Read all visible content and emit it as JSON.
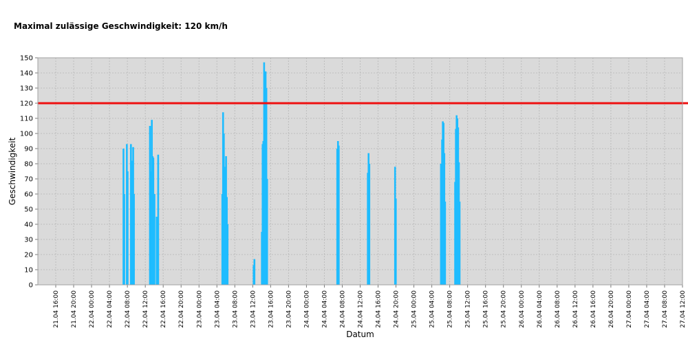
{
  "chart_data": {
    "type": "bar",
    "title": "Maximal zulässige Geschwindigkeit: 120 km/h",
    "xlabel": "Datum",
    "ylabel": "Geschwindigkeit",
    "ylim": [
      0,
      150
    ],
    "yticks": [
      0,
      10,
      20,
      30,
      40,
      50,
      60,
      70,
      80,
      90,
      100,
      110,
      120,
      130,
      140,
      150
    ],
    "xlim": [
      "2021-04-21T12:00",
      "2021-04-27T12:00"
    ],
    "xtick_labels": [
      "21.04 16:00",
      "21.04 20:00",
      "22.04 00:00",
      "22.04 04:00",
      "22.04 08:00",
      "22.04 12:00",
      "22.04 16:00",
      "22.04 20:00",
      "23.04 00:00",
      "23.04 04:00",
      "23.04 08:00",
      "23.04 12:00",
      "23.04 16:00",
      "23.04 20:00",
      "24.04 00:00",
      "24.04 04:00",
      "24.04 08:00",
      "24.04 12:00",
      "24.04 16:00",
      "24.04 20:00",
      "25.04 00:00",
      "25.04 04:00",
      "25.04 08:00",
      "25.04 12:00",
      "25.04 16:00",
      "25.04 20:00",
      "26.04 00:00",
      "26.04 04:00",
      "26.04 08:00",
      "26.04 12:00",
      "26.04 16:00",
      "26.04 20:00",
      "27.04 00:00",
      "27.04 04:00",
      "27.04 08:00",
      "27.04 12:00"
    ],
    "grid": true,
    "legend": "none",
    "limit_line": {
      "value": 120,
      "color": "#ee1111"
    },
    "series_color": "#1ebcff",
    "plot_background": "#dadada",
    "series": [
      {
        "values": [
          [
            "2021-04-22T07:05",
            90
          ],
          [
            "2021-04-22T07:15",
            60
          ],
          [
            "2021-04-22T07:50",
            93
          ],
          [
            "2021-04-22T08:00",
            75
          ],
          [
            "2021-04-22T08:45",
            93
          ],
          [
            "2021-04-22T09:00",
            82
          ],
          [
            "2021-04-22T09:15",
            91
          ],
          [
            "2021-04-22T09:25",
            60
          ],
          [
            "2021-04-22T13:00",
            105
          ],
          [
            "2021-04-22T13:10",
            75
          ],
          [
            "2021-04-22T13:25",
            109
          ],
          [
            "2021-04-22T13:35",
            85
          ],
          [
            "2021-04-22T13:45",
            84
          ],
          [
            "2021-04-22T14:00",
            60
          ],
          [
            "2021-04-22T14:30",
            45
          ],
          [
            "2021-04-22T14:50",
            86
          ],
          [
            "2021-04-23T05:10",
            60
          ],
          [
            "2021-04-23T05:20",
            114
          ],
          [
            "2021-04-23T05:30",
            100
          ],
          [
            "2021-04-23T05:45",
            78
          ],
          [
            "2021-04-23T06:00",
            85
          ],
          [
            "2021-04-23T06:10",
            58
          ],
          [
            "2021-04-23T06:20",
            40
          ],
          [
            "2021-04-23T12:10",
            13
          ],
          [
            "2021-04-23T12:20",
            17
          ],
          [
            "2021-04-23T14:00",
            35
          ],
          [
            "2021-04-23T14:10",
            93
          ],
          [
            "2021-04-23T14:20",
            95
          ],
          [
            "2021-04-23T14:30",
            147
          ],
          [
            "2021-04-23T14:40",
            120
          ],
          [
            "2021-04-23T14:50",
            141
          ],
          [
            "2021-04-23T15:00",
            130
          ],
          [
            "2021-04-23T15:10",
            70
          ],
          [
            "2021-04-24T06:50",
            90
          ],
          [
            "2021-04-24T07:00",
            95
          ],
          [
            "2021-04-24T07:10",
            92
          ],
          [
            "2021-04-24T13:40",
            74
          ],
          [
            "2021-04-24T13:50",
            87
          ],
          [
            "2021-04-24T14:00",
            80
          ],
          [
            "2021-04-24T19:45",
            78
          ],
          [
            "2021-04-24T19:55",
            57
          ],
          [
            "2021-04-25T06:00",
            80
          ],
          [
            "2021-04-25T06:15",
            96
          ],
          [
            "2021-04-25T06:25",
            108
          ],
          [
            "2021-04-25T06:35",
            107
          ],
          [
            "2021-04-25T06:45",
            87
          ],
          [
            "2021-04-25T06:55",
            55
          ],
          [
            "2021-04-25T09:10",
            68
          ],
          [
            "2021-04-25T09:20",
            103
          ],
          [
            "2021-04-25T09:30",
            112
          ],
          [
            "2021-04-25T09:40",
            110
          ],
          [
            "2021-04-25T09:50",
            104
          ],
          [
            "2021-04-25T10:00",
            81
          ],
          [
            "2021-04-25T10:10",
            55
          ]
        ]
      }
    ]
  }
}
